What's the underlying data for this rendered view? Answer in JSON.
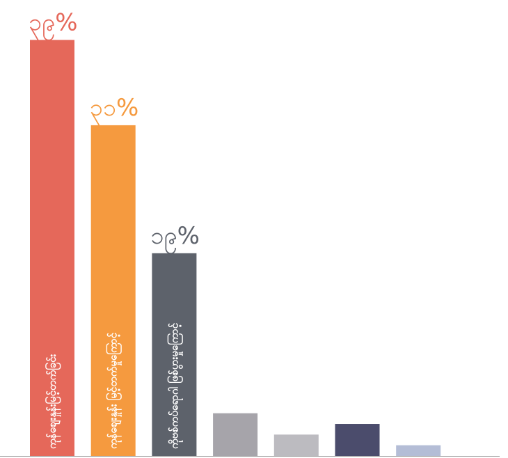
{
  "chart_data": {
    "type": "bar",
    "categories": [
      "ကုန်စျေးနှုန်းမြင့်တက်ခြင်း",
      "ကုန်စျေးနှုန်း မြင့်တက်မှုကြောင့်",
      "ကိုဗစ်ကပ်ရောဂါ ဖြစ်ပွားမှုကြောင့်",
      null,
      null,
      null,
      null
    ],
    "values": [
      39,
      31,
      19,
      4,
      2,
      3,
      1
    ],
    "value_labels": [
      "၃၉%",
      "၃၁%",
      "၁၉%",
      null,
      null,
      null,
      null
    ],
    "colors": [
      "#e5685a",
      "#f59a3f",
      "#5d626b",
      "#a6a4aa",
      "#bcbbc0",
      "#4b4c6c",
      "#b4bdd6"
    ],
    "ylim": [
      0,
      40
    ]
  }
}
